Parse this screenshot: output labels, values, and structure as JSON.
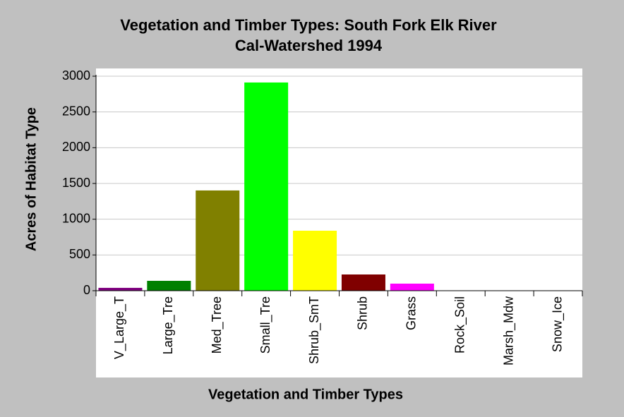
{
  "chart_data": {
    "type": "bar",
    "title": "Vegetation and Timber Types: South Fork Elk River",
    "subtitle": "Cal-Watershed 1994",
    "x_label": "Vegetation and Timber Types",
    "y_label": "Acres of Habitat Type",
    "categories": [
      "V_Large_T",
      "Large_Tre",
      "Med_Tree",
      "Small_Tre",
      "Shrub_SmT",
      "Shrub",
      "Grass",
      "Rock_Soil",
      "Marsh_Mdw",
      "Snow_Ice"
    ],
    "values": [
      40,
      138,
      1402,
      2912,
      839,
      227,
      99,
      0,
      0,
      0
    ],
    "colors": [
      "#800080",
      "#008000",
      "#808000",
      "#00ff00",
      "#ffff00",
      "#800000",
      "#ff00ff",
      "#808080",
      "#008080",
      "#0000ff"
    ],
    "ylim": [
      0,
      3000
    ],
    "yticks": [
      0,
      500,
      1000,
      1500,
      2000,
      2500,
      3000
    ],
    "grid": true
  }
}
